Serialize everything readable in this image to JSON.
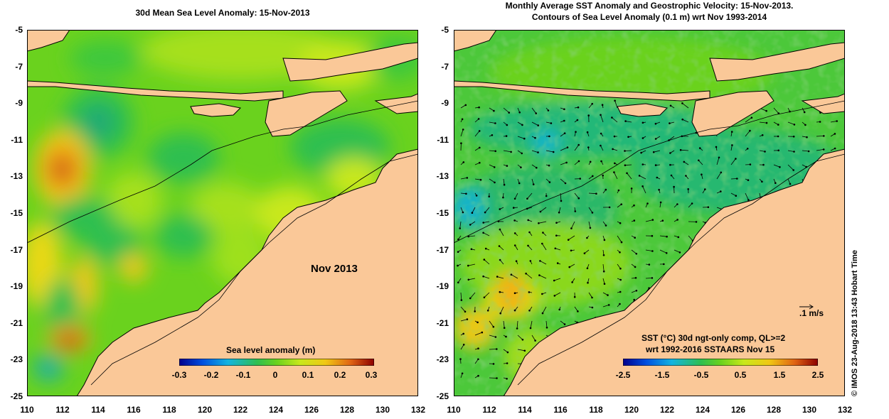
{
  "left_panel": {
    "title": "30d Mean Sea Level Anomaly: 15-Nov-2013",
    "month_label": "Nov 2013",
    "colorbar": {
      "title": "Sea level anomaly (m)",
      "ticks": [
        "-0.3",
        "-0.2",
        "-0.1",
        "0",
        "0.1",
        "0.2",
        "0.3"
      ]
    }
  },
  "right_panel": {
    "title_line1": "Monthly Average SST Anomaly  and Geostrophic Velocity: 15-Nov-2013.",
    "title_line2": "Contours of Sea Level Anomaly (0.1 m) wrt Nov 1993-2014",
    "velocity_scale_label": ".1 m/s",
    "colorbar": {
      "title_line1": "SST (°C) 30d ngt-only comp, QL>=2",
      "title_line2": "wrt 1992-2016 SSTAARS Nov 15",
      "ticks": [
        "-2.5",
        "-1.5",
        "-0.5",
        "0.5",
        "1.5",
        "2.5"
      ]
    }
  },
  "axes": {
    "lon_ticks": [
      "110",
      "112",
      "114",
      "116",
      "118",
      "120",
      "122",
      "124",
      "126",
      "128",
      "130",
      "132"
    ],
    "lat_ticks": [
      "-5",
      "-7",
      "-9",
      "-11",
      "-13",
      "-15",
      "-17",
      "-19",
      "-21",
      "-23",
      "-25"
    ]
  },
  "credit": "© IMOS 23-Aug-2018 13:43 Hobart Time",
  "colors": {
    "land": "#fac898",
    "base_green": "#6ad21e",
    "deep_blue": "#00008c",
    "dark_red": "#8c0000"
  }
}
